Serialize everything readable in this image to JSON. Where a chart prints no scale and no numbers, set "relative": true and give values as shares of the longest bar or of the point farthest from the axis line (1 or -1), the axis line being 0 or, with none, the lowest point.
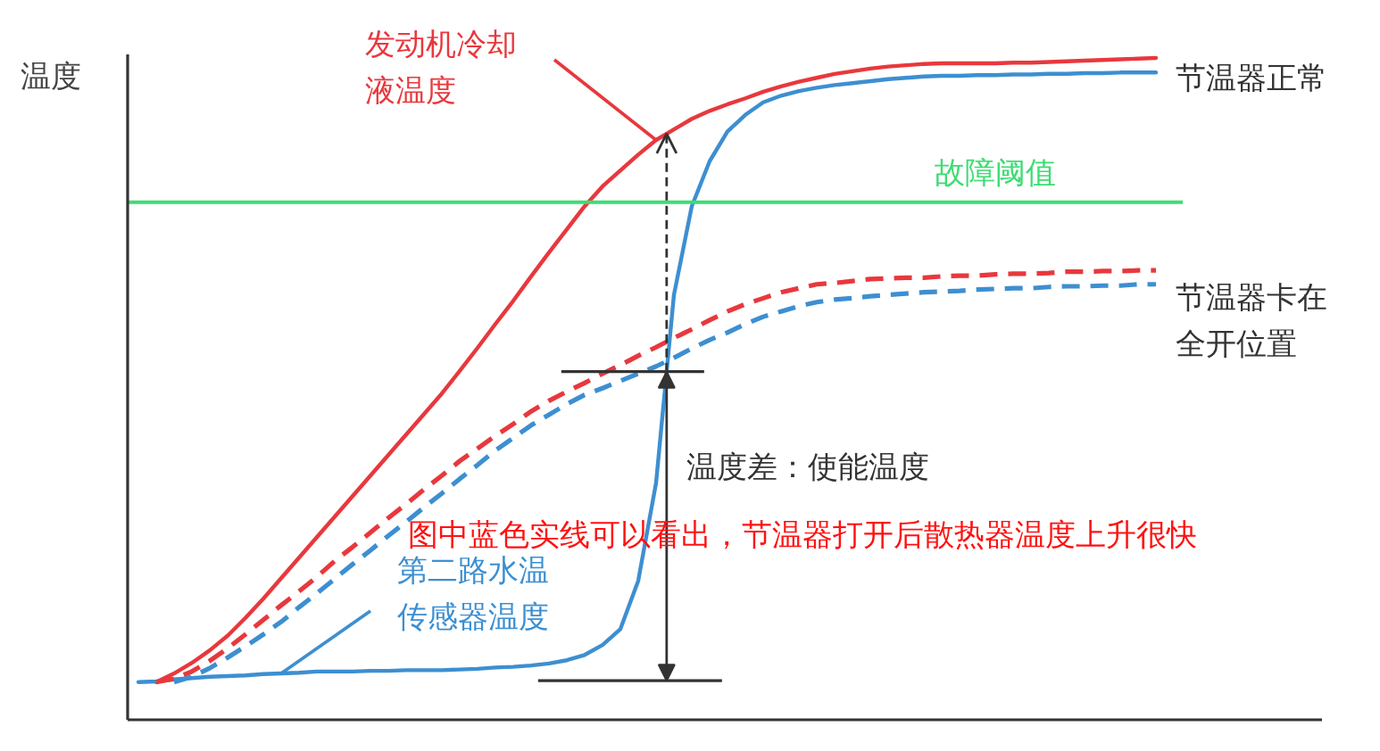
{
  "chart_data": {
    "type": "line",
    "relative": true,
    "ylabel": "温度",
    "line_style": "solid",
    "grid": false,
    "tick_labels": false,
    "categories": [
      null,
      null,
      null,
      null,
      null,
      null,
      null,
      null,
      null,
      null,
      null,
      null,
      null,
      null,
      null,
      null,
      null,
      null,
      null,
      null,
      null,
      null,
      null,
      null,
      null,
      null,
      null,
      null,
      null,
      null,
      null,
      null,
      null,
      null,
      null,
      null,
      null,
      null,
      null,
      null,
      null,
      null,
      null,
      null,
      null,
      null,
      null,
      null,
      null,
      null,
      null,
      null,
      null,
      null,
      null,
      null,
      null,
      null
    ],
    "series": [
      {
        "color": "#e8383d",
        "values": [
          null,
          0.057,
          0.07,
          0.086,
          0.105,
          0.127,
          0.154,
          0.183,
          0.214,
          0.245,
          0.276,
          0.307,
          0.338,
          0.369,
          0.4,
          0.431,
          0.462,
          0.493,
          0.527,
          0.562,
          0.598,
          0.633,
          0.67,
          0.706,
          0.741,
          0.776,
          0.806,
          0.83,
          0.854,
          0.876,
          0.892,
          0.908,
          0.92,
          0.93,
          0.939,
          0.949,
          0.957,
          0.964,
          0.97,
          0.976,
          0.98,
          0.984,
          0.987,
          0.989,
          0.991,
          0.992,
          0.992,
          0.992,
          0.992,
          0.993,
          0.993,
          0.994,
          0.995,
          0.996,
          0.997,
          0.998,
          0.999,
          1.0
        ]
      },
      {
        "color": "#3d8fd1",
        "values": [
          0.057,
          0.058,
          0.061,
          0.063,
          0.065,
          0.066,
          0.067,
          0.069,
          0.07,
          0.071,
          0.073,
          0.073,
          0.073,
          0.074,
          0.074,
          0.075,
          0.075,
          0.075,
          0.076,
          0.077,
          0.079,
          0.08,
          0.082,
          0.085,
          0.09,
          0.098,
          0.113,
          0.137,
          0.21,
          0.358,
          0.642,
          0.776,
          0.844,
          0.889,
          0.914,
          0.933,
          0.943,
          0.95,
          0.955,
          0.959,
          0.962,
          0.965,
          0.968,
          0.97,
          0.972,
          0.973,
          0.973,
          0.974,
          0.974,
          0.975,
          0.975,
          0.976,
          0.976,
          0.977,
          0.977,
          0.978,
          0.978,
          0.978
        ]
      },
      {
        "color": "#e8383d",
        "line_style": "dashed",
        "values": [
          null,
          0.057,
          0.062,
          0.073,
          0.089,
          0.108,
          0.129,
          0.151,
          0.173,
          0.194,
          0.216,
          0.24,
          0.261,
          0.283,
          0.305,
          0.326,
          0.348,
          0.369,
          0.391,
          0.41,
          0.429,
          0.447,
          0.466,
          0.482,
          0.496,
          0.509,
          0.523,
          0.536,
          0.55,
          0.563,
          0.577,
          0.59,
          0.604,
          0.617,
          0.628,
          0.637,
          0.646,
          0.652,
          0.658,
          0.66,
          0.663,
          0.666,
          0.667,
          0.668,
          0.668,
          0.67,
          0.671,
          0.671,
          0.673,
          0.674,
          0.674,
          0.675,
          0.677,
          0.677,
          0.678,
          0.678,
          0.679,
          0.679
        ]
      },
      {
        "color": "#3d8fd1",
        "line_style": "dashed",
        "values": [
          null,
          null,
          0.057,
          0.065,
          0.078,
          0.094,
          0.111,
          0.129,
          0.148,
          0.17,
          0.191,
          0.213,
          0.235,
          0.256,
          0.278,
          0.299,
          0.321,
          0.342,
          0.364,
          0.385,
          0.407,
          0.426,
          0.445,
          0.461,
          0.477,
          0.491,
          0.501,
          0.512,
          0.523,
          0.534,
          0.547,
          0.561,
          0.574,
          0.585,
          0.598,
          0.609,
          0.617,
          0.625,
          0.631,
          0.635,
          0.637,
          0.64,
          0.642,
          0.644,
          0.646,
          0.647,
          0.648,
          0.65,
          0.651,
          0.652,
          0.652,
          0.654,
          0.655,
          0.655,
          0.656,
          0.656,
          0.658,
          0.658
        ]
      }
    ],
    "ref_lines": [
      {
        "axis": "y",
        "value": 0.782,
        "label": "故障阈值",
        "color": "#3ddc72"
      },
      {
        "axis": "y",
        "value": 0.526,
        "color": "#333333"
      },
      {
        "axis": "y",
        "value": 0.059,
        "color": "#333333"
      }
    ],
    "annotations": [
      "发动机冷却液温度",
      "节温器正常",
      "节温器卡在全开位置",
      "温度差：使能温度",
      "图中蓝色实线可以看出，节温器打开后散热器温度上升很快",
      "第二路水温传感器温度"
    ]
  }
}
